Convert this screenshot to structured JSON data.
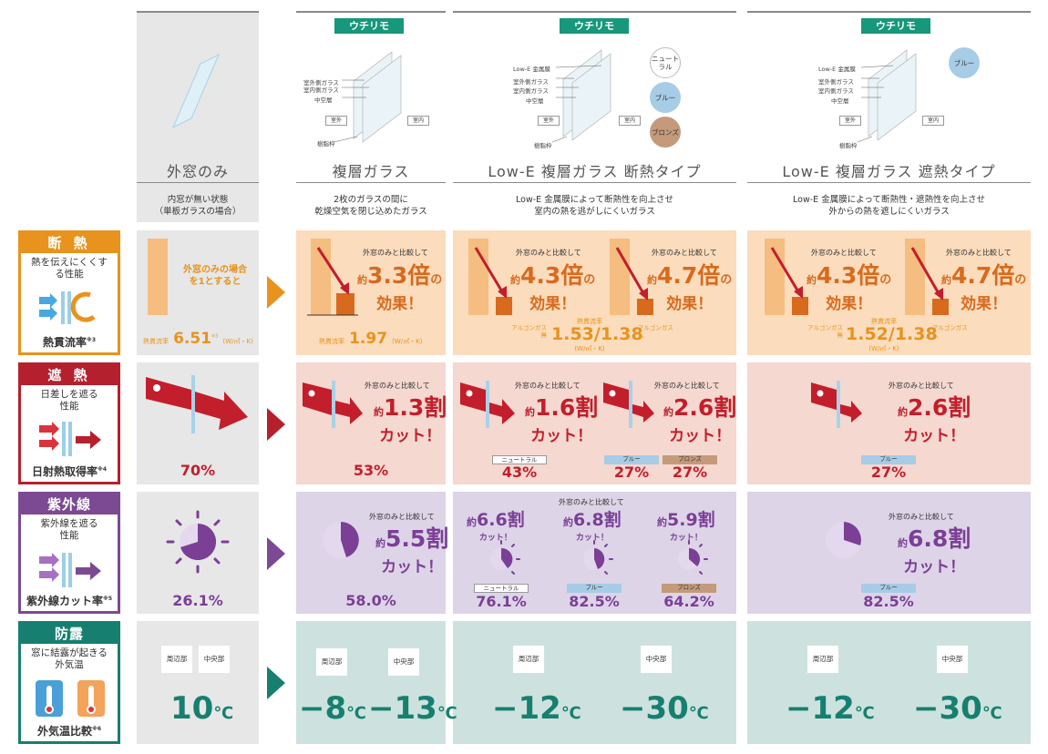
{
  "badge": "ウチリモ",
  "columns": {
    "c0": {
      "title": "外窓のみ",
      "desc1": "内窓が無い状態",
      "desc2": "（単板ガラスの場合）"
    },
    "c1": {
      "title": "複層ガラス",
      "desc1": "2枚のガラスの間に",
      "desc2": "乾燥空気を閉じ込めたガラス",
      "labels": [
        "室外側ガラス",
        "室内側ガラス",
        "中空層",
        "室外",
        "室内",
        "樹脂枠"
      ]
    },
    "c2": {
      "title": "Low-E 複層ガラス 断熱タイプ",
      "desc1": "Low-E 金属膜によって断熱性を向上させ",
      "desc2": "室内の熱を逃がしにくいガラス",
      "labels": [
        "Low-E 金属膜",
        "室外側ガラス",
        "室内側ガラス",
        "中空層",
        "室外",
        "室内",
        "樹脂枠"
      ],
      "colors": [
        "ニュートラル",
        "ブルー",
        "ブロンズ"
      ]
    },
    "c3": {
      "title": "Low-E 複層ガラス 遮熱タイプ",
      "desc1": "Low-E 金属膜によって断熱性・遮熱性を向上させ",
      "desc2": "外からの熱を遮しにくいガラス",
      "labels": [
        "Low-E 金属膜",
        "室外側ガラス",
        "室内側ガラス",
        "中空層",
        "室外",
        "室内",
        "樹脂枠"
      ],
      "colors": [
        "ブルー"
      ]
    }
  },
  "categories": {
    "dannetsu": {
      "head": "断 熱",
      "desc": "熱を伝えにくくする性能",
      "foot": "熱貫流率",
      "note": "※3",
      "color": "#e8931d"
    },
    "shanetsu": {
      "head": "遮 熱",
      "desc": "日差しを遮る性能",
      "foot": "日射熱取得率",
      "note": "※4",
      "color": "#b5202e"
    },
    "shigaisen": {
      "head": "紫外線",
      "desc": "紫外線を遮る性能",
      "foot": "紫外線カット率",
      "note": "※5",
      "color": "#7b4a93"
    },
    "boro": {
      "head": "防露",
      "desc": "窓に結露が起きる外気温",
      "foot": "外気温比較",
      "note": "※6",
      "color": "#177f70"
    }
  },
  "dannetsu": {
    "c0": {
      "note": "外窓のみの場合を1とすると",
      "label": "熱貫流率",
      "value": "6.51",
      "unit": "(W/㎡・K)",
      "ref": "※3"
    },
    "c1": {
      "cmp": "外窓のみと比較して",
      "yaku": "約",
      "num": "3.3倍",
      "suf": "の",
      "line2": "効果！",
      "label": "熱貫流率",
      "value": "1.97",
      "unit": "(W/㎡・K)"
    },
    "c2": {
      "a": {
        "cmp": "外窓のみと比較して",
        "yaku": "約",
        "num": "4.3倍",
        "suf": "の",
        "line2": "効果！"
      },
      "b": {
        "cmp": "外窓のみと比較して",
        "yaku": "約",
        "num": "4.7倍",
        "suf": "の",
        "line2": "効果！"
      },
      "label": "熱貫流率",
      "value": "1.53/1.38",
      "unit": "(W/㎡・K)",
      "left": "アルゴンガス無",
      "right": "アルゴンガス入"
    },
    "c3": {
      "a": {
        "cmp": "外窓のみと比較して",
        "yaku": "約",
        "num": "4.3倍",
        "suf": "の",
        "line2": "効果！"
      },
      "b": {
        "cmp": "外窓のみと比較して",
        "yaku": "約",
        "num": "4.7倍",
        "suf": "の",
        "line2": "効果！"
      },
      "label": "熱貫流率",
      "value": "1.52/1.38",
      "unit": "(W/㎡・K)",
      "left": "アルゴンガス無",
      "right": "アルゴンガス入"
    }
  },
  "shanetsu": {
    "c0": {
      "pct": "70%"
    },
    "c1": {
      "cmp": "外窓のみと比較して",
      "yaku": "約",
      "num": "1.3割",
      "line2": "カット！",
      "pct": "53%"
    },
    "c2": {
      "a": {
        "cmp": "外窓のみと比較して",
        "yaku": "約",
        "num": "1.6割",
        "line2": "カット！",
        "tag": "ニュートラル",
        "pct": "43%"
      },
      "b": {
        "cmp": "外窓のみと比較して",
        "yaku": "約",
        "num": "2.6割",
        "line2": "カット！",
        "tags": [
          "ブルー",
          "ブロンズ"
        ],
        "pcts": [
          "27%",
          "27%"
        ]
      }
    },
    "c3": {
      "cmp": "外窓のみと比較して",
      "yaku": "約",
      "num": "2.6割",
      "line2": "カット！",
      "tag": "ブルー",
      "pct": "27%"
    }
  },
  "shigaisen": {
    "c0": {
      "pct": "26.1%"
    },
    "c1": {
      "cmp": "外窓のみと比較して",
      "yaku": "約",
      "num": "5.5割",
      "line2": "カット！",
      "pct": "58.0%"
    },
    "c2": {
      "cmp": "外窓のみと比較して",
      "items": [
        {
          "yaku": "約",
          "num": "6.6割",
          "line2": "カット！",
          "tag": "ニュートラル",
          "pct": "76.1%"
        },
        {
          "yaku": "約",
          "num": "6.8割",
          "line2": "カット！",
          "tag": "ブルー",
          "pct": "82.5%"
        },
        {
          "yaku": "約",
          "num": "5.9割",
          "line2": "カット！",
          "tag": "ブロンズ",
          "pct": "64.2%"
        }
      ]
    },
    "c3": {
      "cmp": "外窓のみと比較して",
      "yaku": "約",
      "num": "6.8割",
      "line2": "カット！",
      "tag": "ブルー",
      "pct": "82.5%"
    }
  },
  "boro": {
    "edge": "周辺部",
    "center": "中央部",
    "c0": {
      "temp": "10",
      "unit": "℃"
    },
    "c1": {
      "t1": "−8",
      "t2": "−13",
      "unit": "℃"
    },
    "c2": {
      "t1": "−12",
      "t2": "−30",
      "unit": "℃"
    },
    "c3": {
      "t1": "−12",
      "t2": "−30",
      "unit": "℃"
    }
  }
}
